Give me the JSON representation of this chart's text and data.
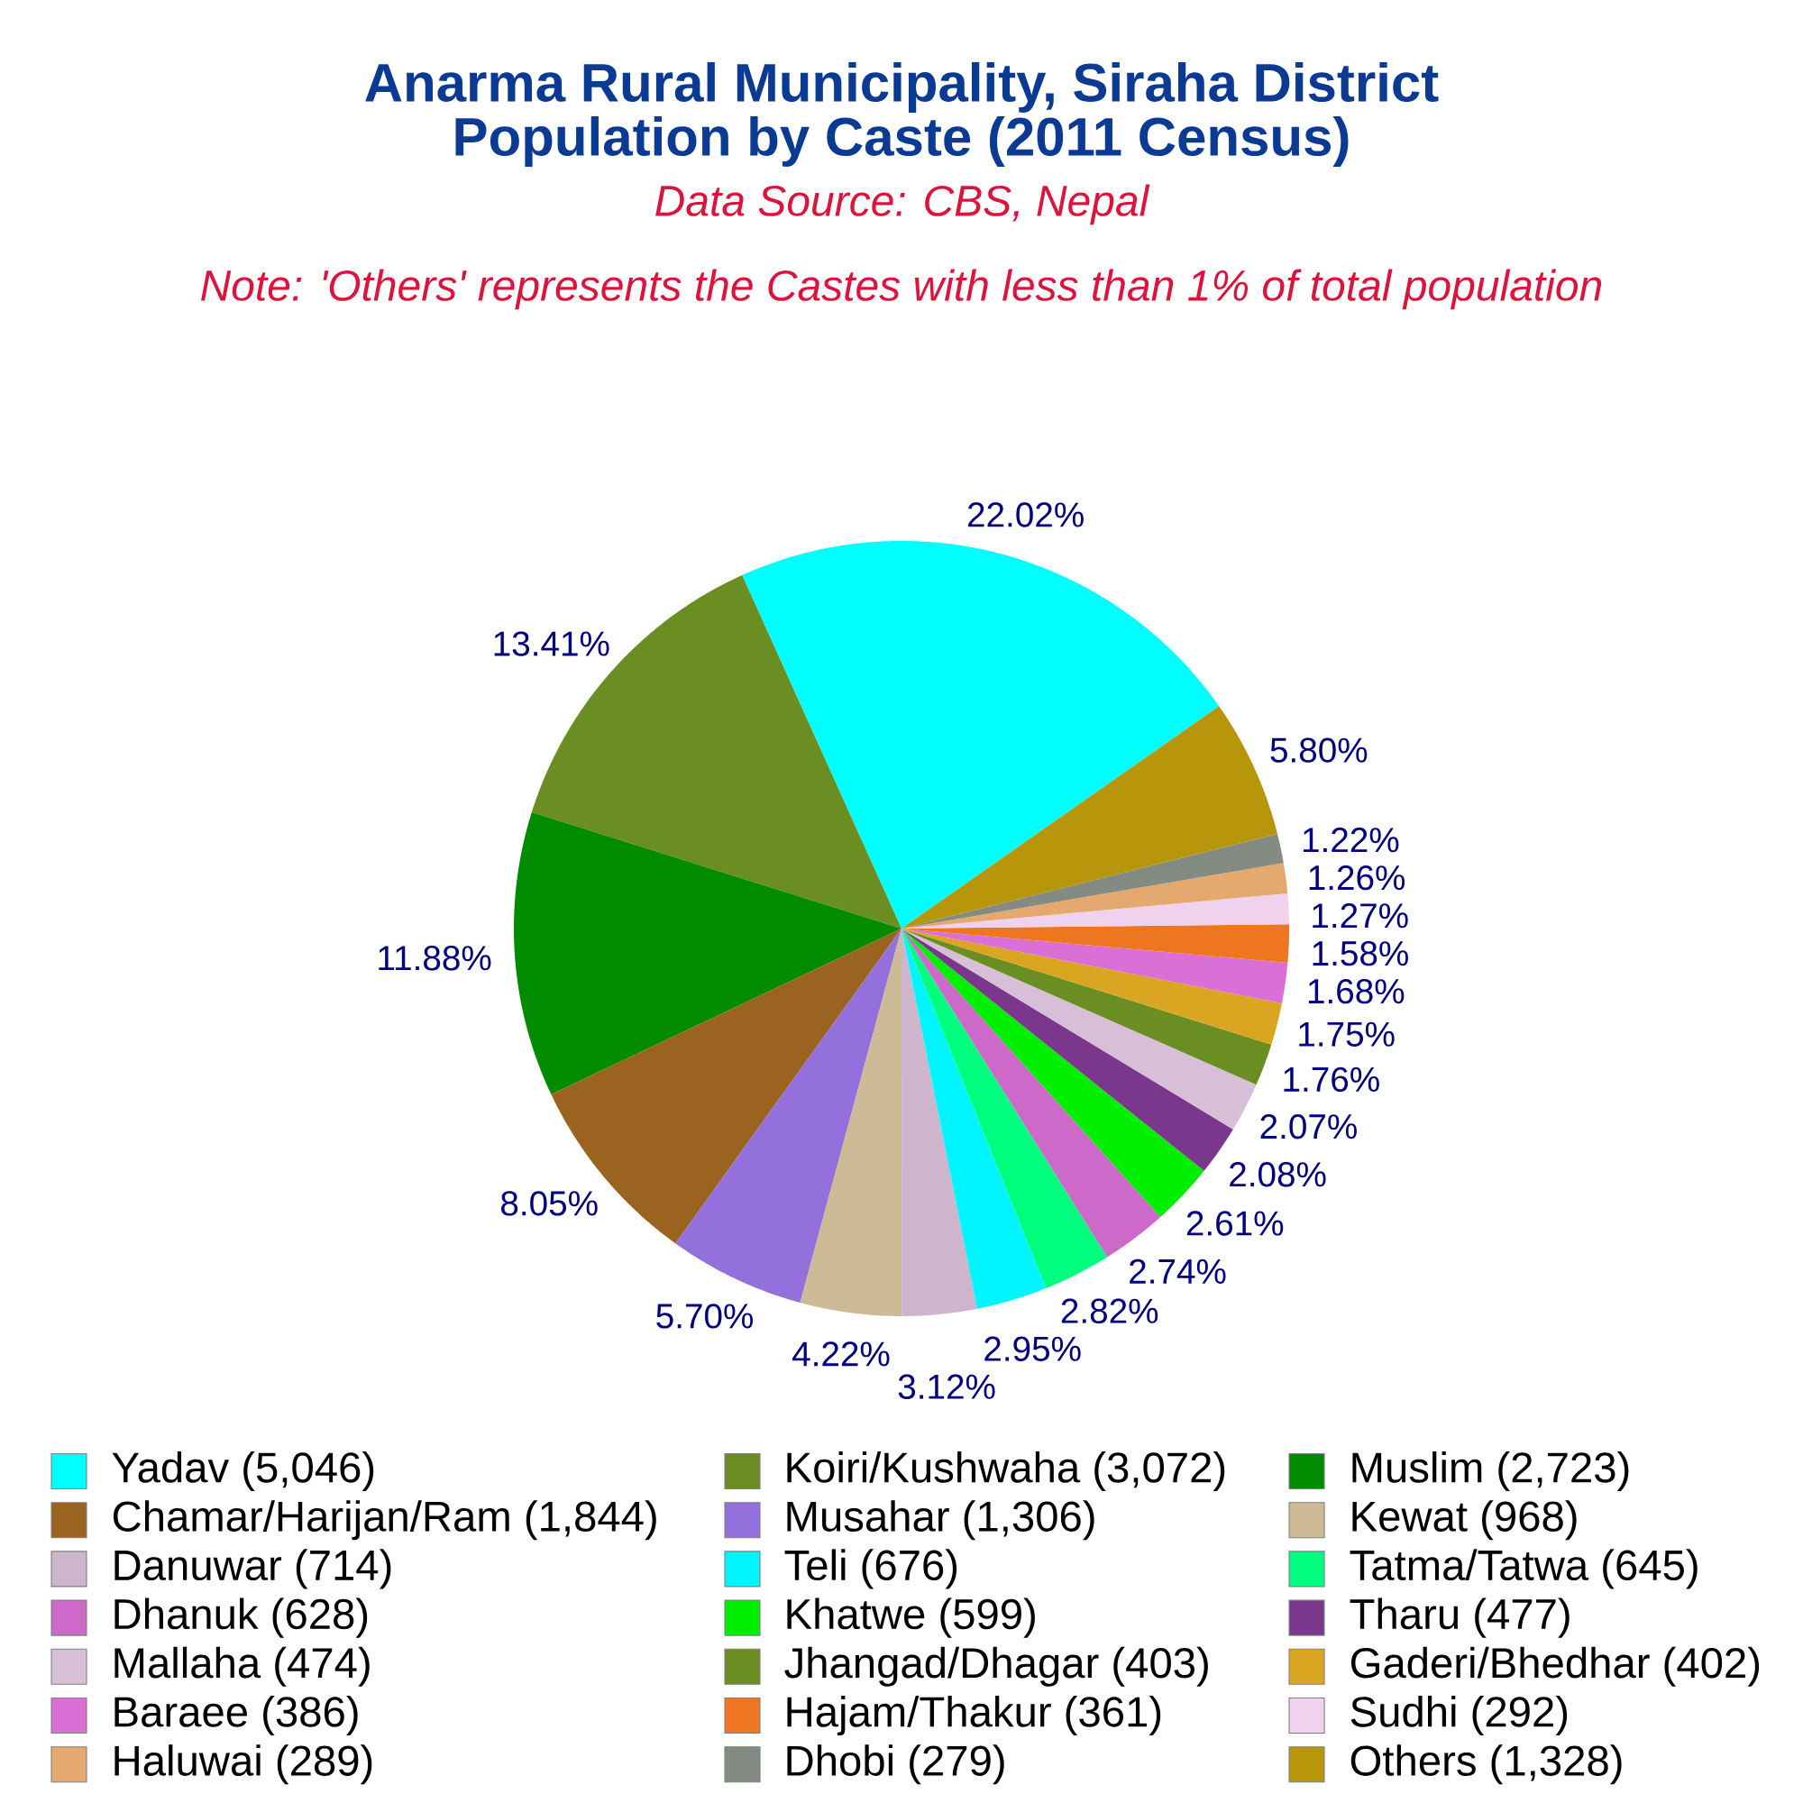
{
  "chart_data": {
    "type": "pie",
    "title": "Anarma Rural Municipality, Siraha District",
    "subtitle": "Population by Caste (2011 Census)",
    "annotations": [
      "Data Source: CBS, Nepal",
      "Note: 'Others' represents the Castes with less than 1% of total population"
    ],
    "categories": [
      "Yadav (5,046)",
      "Koiri/Kushwaha (3,072)",
      "Muslim (2,723)",
      "Chamar/Harijan/Ram (1,844)",
      "Musahar (1,306)",
      "Kewat (968)",
      "Danuwar (714)",
      "Teli (676)",
      "Tatma/Tatwa (645)",
      "Dhanuk (628)",
      "Khatwe (599)",
      "Tharu (477)",
      "Mallaha (474)",
      "Jhangad/Dhagar (403)",
      "Gaderi/Bhedhar (402)",
      "Baraee (386)",
      "Hajam/Thakur (361)",
      "Sudhi (292)",
      "Haluwai (289)",
      "Dhobi (279)",
      "Others (1,328)"
    ],
    "values": [
      22.02,
      13.41,
      11.88,
      8.05,
      5.7,
      4.22,
      3.12,
      2.95,
      2.82,
      2.74,
      2.61,
      2.08,
      2.07,
      1.76,
      1.75,
      1.68,
      1.58,
      1.27,
      1.26,
      1.22,
      5.8
    ],
    "colors": [
      "#00ffff",
      "#6b8e23",
      "#008b00",
      "#9a6420",
      "#9370db",
      "#cdba96",
      "#cdb5cd",
      "#00f5ff",
      "#00ff7f",
      "#cd69c9",
      "#00ee00",
      "#7a378b",
      "#d8bfd8",
      "#6b8e23",
      "#daa520",
      "#da70d6",
      "#ee7621",
      "#eed2ee",
      "#e5a86e",
      "#838b83",
      "#b8960c"
    ],
    "value_labels": [
      "22.02%",
      "13.41%",
      "11.88%",
      "8.05%",
      "5.70%",
      "4.22%",
      "3.12%",
      "2.95%",
      "2.82%",
      "2.74%",
      "2.61%",
      "2.08%",
      "2.07%",
      "1.76%",
      "1.75%",
      "1.68%",
      "1.58%",
      "1.27%",
      "1.26%",
      "1.22%",
      "5.80%"
    ],
    "legend": "bottom"
  }
}
